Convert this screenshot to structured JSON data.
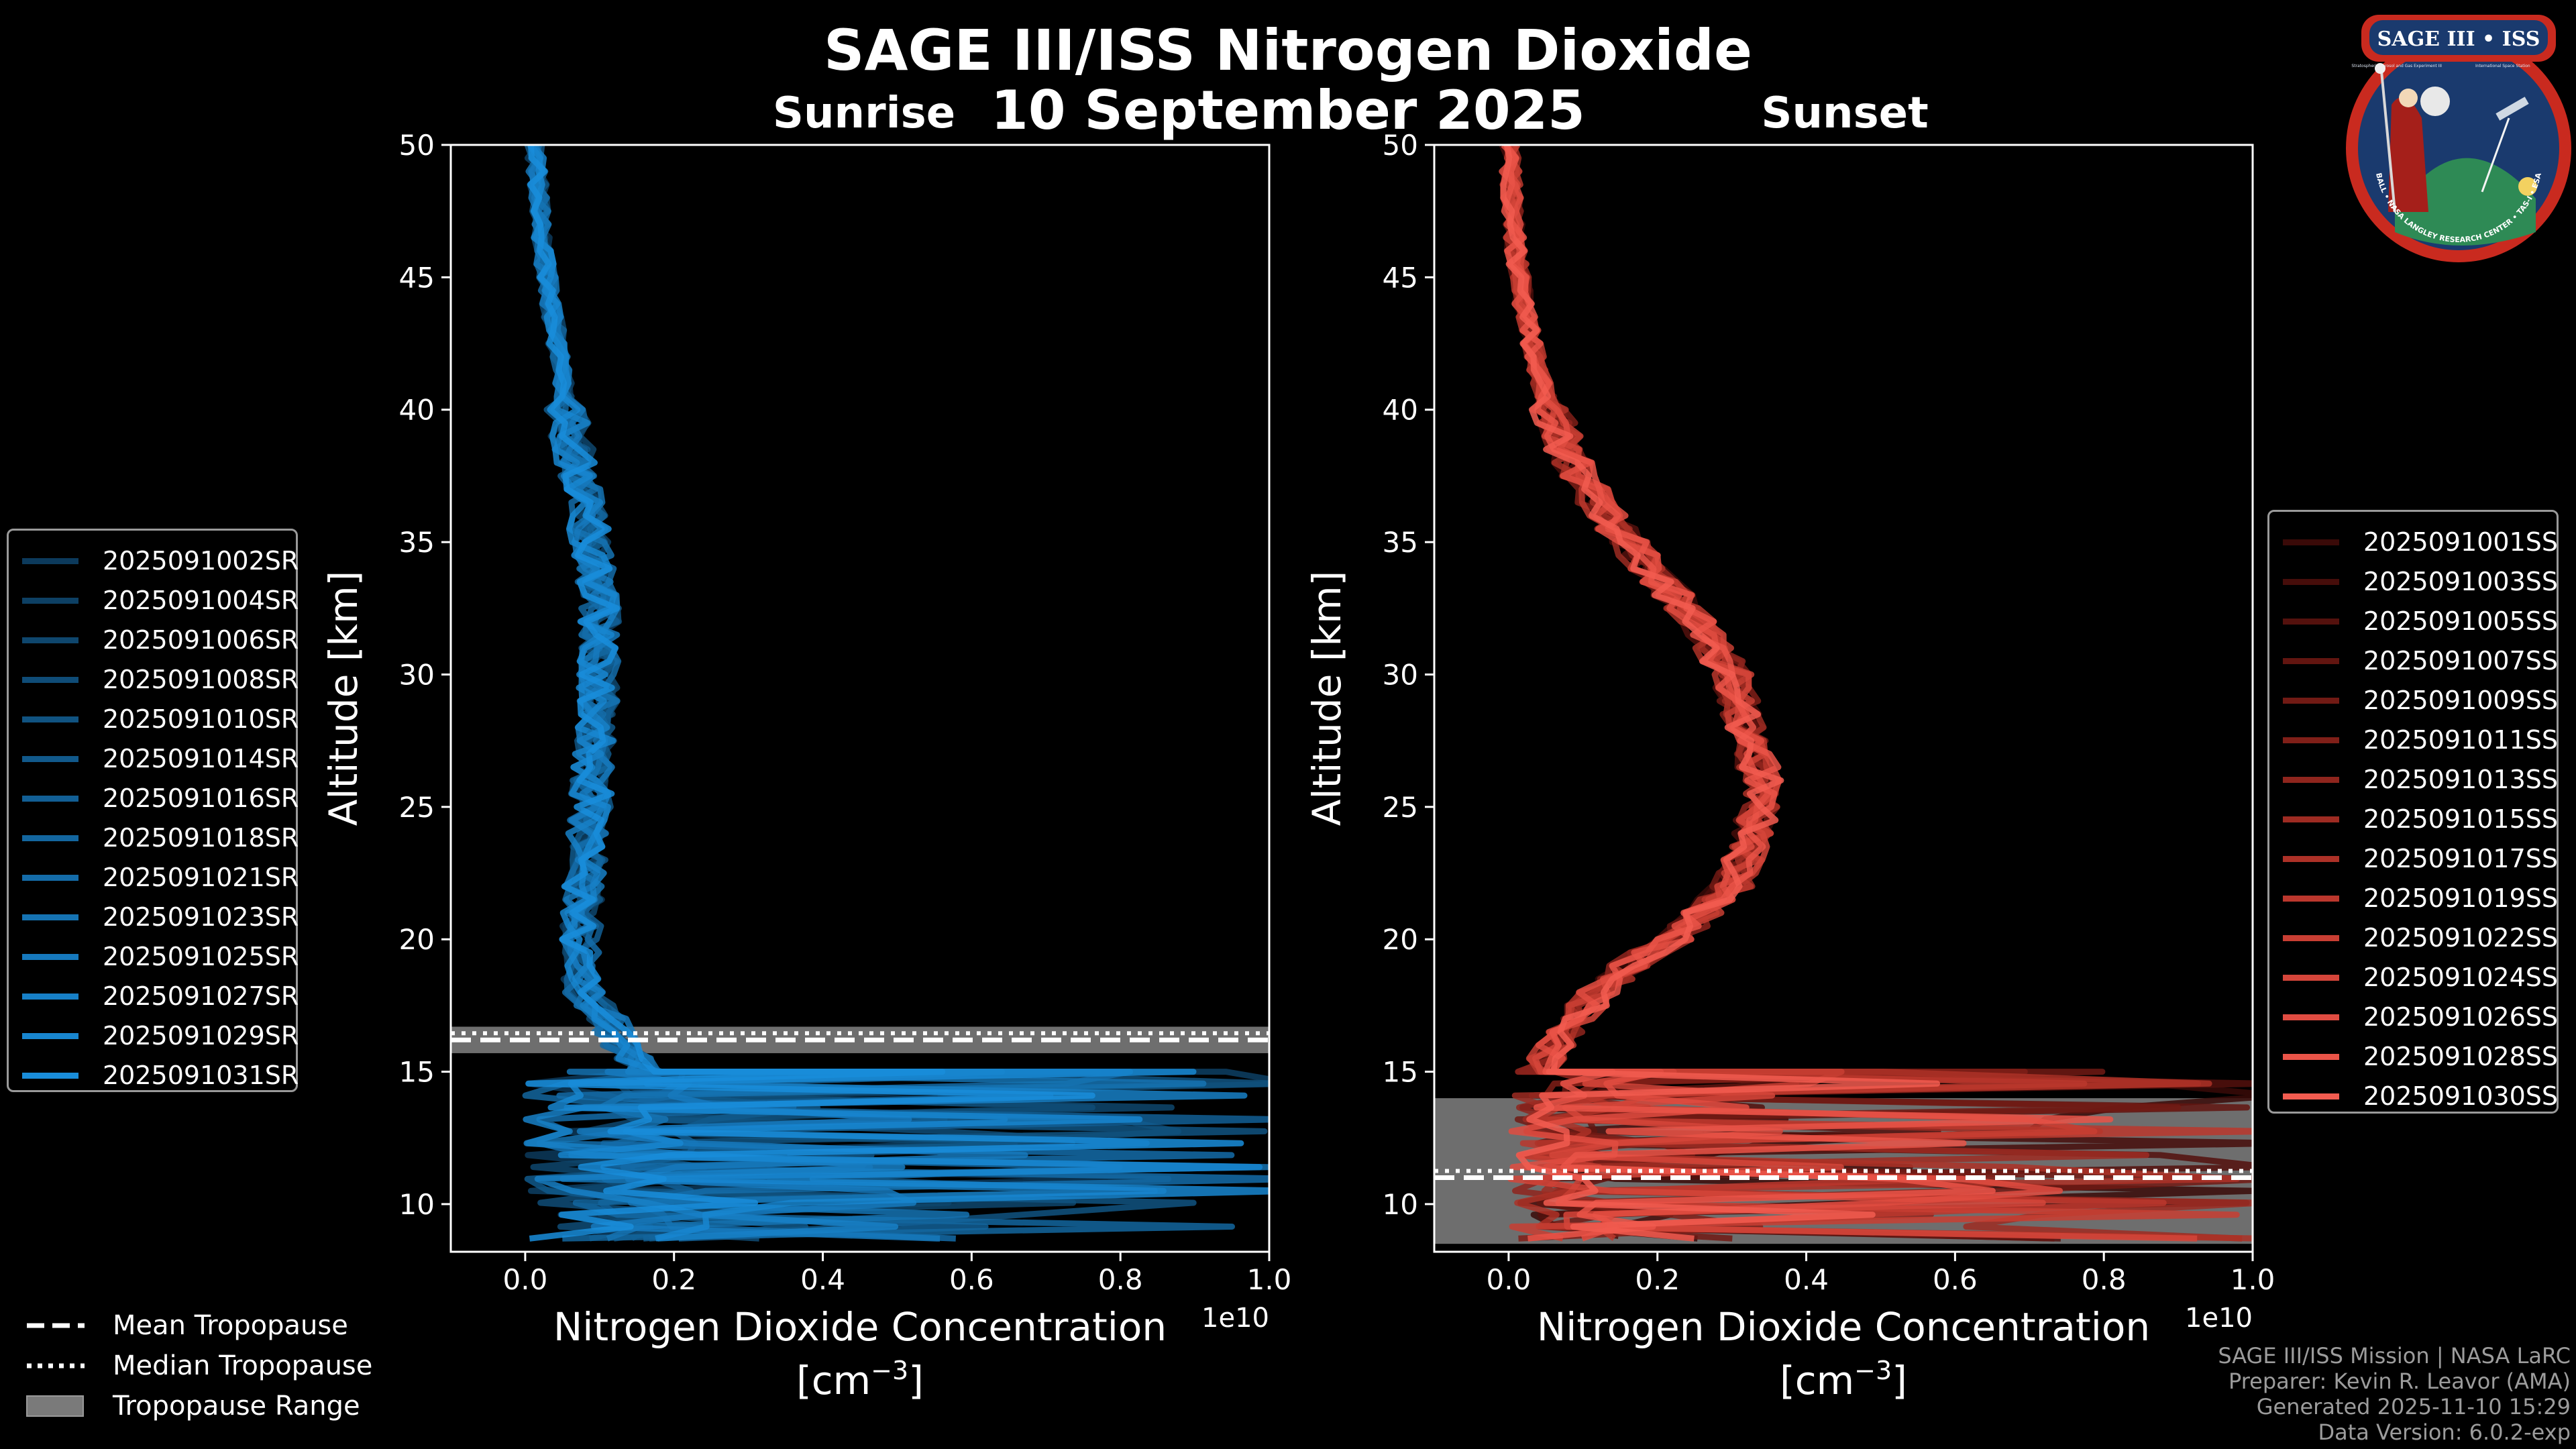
{
  "figure": {
    "title": "SAGE III/ISS Nitrogen Dioxide",
    "date": "10 September 2025",
    "sunrise_label": "Sunrise",
    "sunset_label": "Sunset"
  },
  "chart_data": [
    {
      "type": "line",
      "panel": "sunrise",
      "xlabel": "Nitrogen Dioxide Concentration",
      "xunit_base": "[cm",
      "xunit_exp": "−3",
      "xunit_close": "]",
      "ylabel": "Altitude [km]",
      "xlim": [
        -1000000000.0,
        10000000000.0
      ],
      "ylim": [
        8.2,
        50
      ],
      "x_offset_text": "1e10",
      "xticks": [
        0,
        2000000000.0,
        4000000000.0,
        6000000000.0,
        8000000000.0,
        10000000000.0
      ],
      "xtick_labels": [
        "0.0",
        "0.2",
        "0.4",
        "0.6",
        "0.8",
        "1.0"
      ],
      "yticks": [
        10,
        15,
        20,
        25,
        30,
        35,
        40,
        45,
        50
      ],
      "ytick_labels": [
        "10",
        "15",
        "20",
        "25",
        "30",
        "35",
        "40",
        "45",
        "50"
      ],
      "tropopause": {
        "mean": 16.2,
        "median": 16.3,
        "range": [
          15.7,
          16.7
        ]
      },
      "legend_position": "left",
      "series": [
        {
          "name": "2025091002SR",
          "color": "#0c3a5c"
        },
        {
          "name": "2025091004SR",
          "color": "#0d4064"
        },
        {
          "name": "2025091006SR",
          "color": "#0e466d"
        },
        {
          "name": "2025091008SR",
          "color": "#0f4c77"
        },
        {
          "name": "2025091010SR",
          "color": "#105381"
        },
        {
          "name": "2025091014SR",
          "color": "#11598b"
        },
        {
          "name": "2025091016SR",
          "color": "#125f95"
        },
        {
          "name": "2025091018SR",
          "color": "#13669f"
        },
        {
          "name": "2025091021SR",
          "color": "#146ca9"
        },
        {
          "name": "2025091023SR",
          "color": "#1573b3"
        },
        {
          "name": "2025091025SR",
          "color": "#1679bd"
        },
        {
          "name": "2025091027SR",
          "color": "#1780c7"
        },
        {
          "name": "2025091029SR",
          "color": "#1886d0"
        },
        {
          "name": "2025091031SR",
          "color": "#198dda"
        }
      ],
      "profile": {
        "alt": [
          50,
          48,
          46,
          44,
          42,
          40,
          38,
          36,
          34,
          32,
          30,
          28,
          26,
          24,
          22,
          20,
          18,
          17,
          16,
          15
        ],
        "no2": [
          120000000.0,
          180000000.0,
          250000000.0,
          350000000.0,
          450000000.0,
          550000000.0,
          680000000.0,
          820000000.0,
          950000000.0,
          1000000000.0,
          1000000000.0,
          950000000.0,
          900000000.0,
          850000000.0,
          800000000.0,
          750000000.0,
          800000000.0,
          1100000000.0,
          1300000000.0,
          1600000000.0
        ]
      }
    },
    {
      "type": "line",
      "panel": "sunset",
      "xlabel": "Nitrogen Dioxide Concentration",
      "xunit_base": "[cm",
      "xunit_exp": "−3",
      "xunit_close": "]",
      "ylabel": "Altitude [km]",
      "xlim": [
        -1000000000.0,
        10000000000.0
      ],
      "ylim": [
        8.2,
        50
      ],
      "x_offset_text": "1e10",
      "xticks": [
        0,
        2000000000.0,
        4000000000.0,
        6000000000.0,
        8000000000.0,
        10000000000.0
      ],
      "xtick_labels": [
        "0.0",
        "0.2",
        "0.4",
        "0.6",
        "0.8",
        "1.0"
      ],
      "yticks": [
        10,
        15,
        20,
        25,
        30,
        35,
        40,
        45,
        50
      ],
      "ytick_labels": [
        "10",
        "15",
        "20",
        "25",
        "30",
        "35",
        "40",
        "45",
        "50"
      ],
      "tropopause": {
        "mean": 11.0,
        "median": 11.1,
        "range": [
          8.5,
          14.0
        ]
      },
      "legend_position": "right",
      "series": [
        {
          "name": "2025091001SS",
          "color": "#3a0a08"
        },
        {
          "name": "2025091003SS",
          "color": "#460d0a"
        },
        {
          "name": "2025091005SS",
          "color": "#54110d"
        },
        {
          "name": "2025091007SS",
          "color": "#621510"
        },
        {
          "name": "2025091009SS",
          "color": "#711a14"
        },
        {
          "name": "2025091011SS",
          "color": "#801f18"
        },
        {
          "name": "2025091013SS",
          "color": "#8f251d"
        },
        {
          "name": "2025091015SS",
          "color": "#9e2b22"
        },
        {
          "name": "2025091017SS",
          "color": "#ad3127"
        },
        {
          "name": "2025091019SS",
          "color": "#bb372d"
        },
        {
          "name": "2025091022SS",
          "color": "#c83e33"
        },
        {
          "name": "2025091024SS",
          "color": "#d5453a"
        },
        {
          "name": "2025091026SS",
          "color": "#e04c41"
        },
        {
          "name": "2025091028SS",
          "color": "#ea5448"
        },
        {
          "name": "2025091030SS",
          "color": "#f25c50"
        }
      ],
      "profile": {
        "alt": [
          50,
          48,
          46,
          44,
          42,
          40,
          38,
          36,
          34,
          32,
          30,
          28,
          26,
          24,
          22,
          20,
          19,
          18,
          17,
          16,
          15
        ],
        "no2": [
          0,
          50000000.0,
          100000000.0,
          200000000.0,
          350000000.0,
          550000000.0,
          850000000.0,
          1300000000.0,
          1900000000.0,
          2500000000.0,
          3000000000.0,
          3200000000.0,
          3400000000.0,
          3300000000.0,
          3000000000.0,
          2200000000.0,
          1600000000.0,
          1200000000.0,
          900000000.0,
          600000000.0,
          400000000.0
        ]
      }
    }
  ],
  "tropopause_legend": {
    "mean": "Mean Tropopause",
    "median": "Median Tropopause",
    "range": "Tropopause Range"
  },
  "credits": {
    "line1": "SAGE III/ISS Mission | NASA LaRC",
    "line2": "Preparer: Kevin R. Leavor (AMA)",
    "line3": "Generated 2025-11-10 15:29",
    "line4": "Data Version: 6.0.2-exp"
  },
  "logo": {
    "top_text": "SAGE III • ISS",
    "ring_text": "BALL • NASA LANGLEY RESEARCH CENTER • TAS-I • ESA",
    "sub_left": "Stratospheric Aerosol and Gas Experiment III",
    "sub_right": "International Space Station"
  },
  "colors": {
    "sunrise": "#1a8fdc",
    "sunset": "#ef5a4e",
    "trop_fill": "#7a7a7a"
  }
}
